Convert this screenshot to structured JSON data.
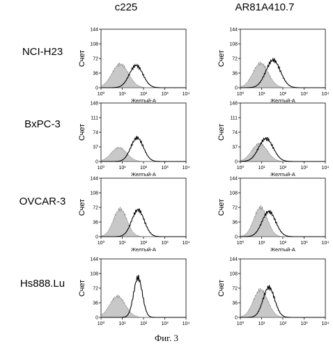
{
  "figure_caption": "Фиг. 3",
  "columns": [
    "c225",
    "AR81A410.7"
  ],
  "rows": [
    "NCI-H23",
    "BxPC-3",
    "OVCAR-3",
    "Hs888.Lu"
  ],
  "colors": {
    "control_fill": "#9a9a9a",
    "antibody_line": "#000000",
    "frame": "#000000"
  },
  "chart_data": [
    {
      "type": "area",
      "row": "NCI-H23",
      "column": "c225",
      "xlabel": "Желтый-А",
      "ylabel": "Счет",
      "xscale": "log",
      "xlim": [
        1,
        10000
      ],
      "ylim": [
        0,
        144
      ],
      "yticks": [
        0,
        36,
        72,
        108,
        144
      ],
      "xticks": [
        "10^0",
        "10^1",
        "10^2",
        "10^3",
        "10^4"
      ],
      "series": [
        {
          "role": "control",
          "style": "filled-grey",
          "peak_x": 8,
          "peak_y": 58,
          "width_decades": 0.85
        },
        {
          "role": "antibody",
          "style": "black-outline",
          "peak_x": 45,
          "peak_y": 55,
          "width_decades": 0.7
        }
      ]
    },
    {
      "type": "area",
      "row": "NCI-H23",
      "column": "AR81A410.7",
      "xlabel": "Желтый-А",
      "ylabel": "Счет",
      "xscale": "log",
      "xlim": [
        1,
        10000
      ],
      "ylim": [
        0,
        144
      ],
      "yticks": [
        0,
        36,
        72,
        108,
        144
      ],
      "xticks": [
        "10^0",
        "10^1",
        "10^2",
        "10^3",
        "10^4"
      ],
      "series": [
        {
          "role": "control",
          "style": "filled-grey",
          "peak_x": 9,
          "peak_y": 60,
          "width_decades": 0.8
        },
        {
          "role": "antibody",
          "style": "black-outline",
          "peak_x": 35,
          "peak_y": 68,
          "width_decades": 0.75
        }
      ]
    },
    {
      "type": "area",
      "row": "BxPC-3",
      "column": "c225",
      "xlabel": "Желтый-А",
      "ylabel": "Счет",
      "xscale": "log",
      "xlim": [
        1,
        10000
      ],
      "ylim": [
        0,
        148
      ],
      "yticks": [
        0,
        37,
        74,
        111,
        148
      ],
      "xticks": [
        "10^0",
        "10^1",
        "10^2",
        "10^3",
        "10^4"
      ],
      "series": [
        {
          "role": "control",
          "style": "filled-grey",
          "peak_x": 7,
          "peak_y": 35,
          "width_decades": 0.8
        },
        {
          "role": "antibody",
          "style": "black-outline",
          "peak_x": 50,
          "peak_y": 60,
          "width_decades": 0.65
        }
      ]
    },
    {
      "type": "area",
      "row": "BxPC-3",
      "column": "AR81A410.7",
      "xlabel": "Желтый-А",
      "ylabel": "Счет",
      "xscale": "log",
      "xlim": [
        1,
        10000
      ],
      "ylim": [
        0,
        148
      ],
      "yticks": [
        0,
        37,
        74,
        111,
        148
      ],
      "xticks": [
        "10^0",
        "10^1",
        "10^2",
        "10^3",
        "10^4"
      ],
      "series": [
        {
          "role": "control",
          "style": "filled-grey",
          "peak_x": 8,
          "peak_y": 45,
          "width_decades": 0.8
        },
        {
          "role": "antibody",
          "style": "black-outline",
          "peak_x": 16,
          "peak_y": 58,
          "width_decades": 0.75
        }
      ]
    },
    {
      "type": "area",
      "row": "OVCAR-3",
      "column": "c225",
      "xlabel": "Желтый-А",
      "ylabel": "Счет",
      "xscale": "log",
      "xlim": [
        1,
        10000
      ],
      "ylim": [
        0,
        144
      ],
      "yticks": [
        0,
        36,
        72,
        108,
        144
      ],
      "xticks": [
        "10^0",
        "10^1",
        "10^2",
        "10^3",
        "10^4"
      ],
      "series": [
        {
          "role": "control",
          "style": "filled-grey",
          "peak_x": 8,
          "peak_y": 68,
          "width_decades": 0.7
        },
        {
          "role": "antibody",
          "style": "black-outline",
          "peak_x": 55,
          "peak_y": 66,
          "width_decades": 0.65
        }
      ]
    },
    {
      "type": "area",
      "row": "OVCAR-3",
      "column": "AR81A410.7",
      "xlabel": "Желтый-А",
      "ylabel": "Счет",
      "xscale": "log",
      "xlim": [
        1,
        10000
      ],
      "ylim": [
        0,
        144
      ],
      "yticks": [
        0,
        36,
        72,
        108,
        144
      ],
      "xticks": [
        "10^0",
        "10^1",
        "10^2",
        "10^3",
        "10^4"
      ],
      "series": [
        {
          "role": "control",
          "style": "filled-grey",
          "peak_x": 9,
          "peak_y": 72,
          "width_decades": 0.7
        },
        {
          "role": "antibody",
          "style": "black-outline",
          "peak_x": 22,
          "peak_y": 62,
          "width_decades": 0.7
        }
      ]
    },
    {
      "type": "area",
      "row": "Hs888.Lu",
      "column": "c225",
      "xlabel": "Желтый-А",
      "ylabel": "Счет",
      "xscale": "log",
      "xlim": [
        1,
        10000
      ],
      "ylim": [
        0,
        144
      ],
      "yticks": [
        0,
        36,
        72,
        108,
        144
      ],
      "xticks": [
        "10^0",
        "10^1",
        "10^2",
        "10^3",
        "10^4"
      ],
      "series": [
        {
          "role": "control",
          "style": "filled-grey",
          "peak_x": 6,
          "peak_y": 52,
          "width_decades": 0.8
        },
        {
          "role": "antibody",
          "style": "black-outline",
          "peak_x": 55,
          "peak_y": 98,
          "width_decades": 0.45
        }
      ]
    },
    {
      "type": "area",
      "row": "Hs888.Lu",
      "column": "AR81A410.7",
      "xlabel": "Желтый-А",
      "ylabel": "Счет",
      "xscale": "log",
      "xlim": [
        1,
        10000
      ],
      "ylim": [
        0,
        144
      ],
      "yticks": [
        0,
        36,
        72,
        108,
        144
      ],
      "xticks": [
        "10^0",
        "10^1",
        "10^2",
        "10^3",
        "10^4"
      ],
      "series": [
        {
          "role": "control",
          "style": "filled-grey",
          "peak_x": 9,
          "peak_y": 68,
          "width_decades": 0.75
        },
        {
          "role": "antibody",
          "style": "black-outline",
          "peak_x": 22,
          "peak_y": 74,
          "width_decades": 0.6
        }
      ]
    }
  ]
}
